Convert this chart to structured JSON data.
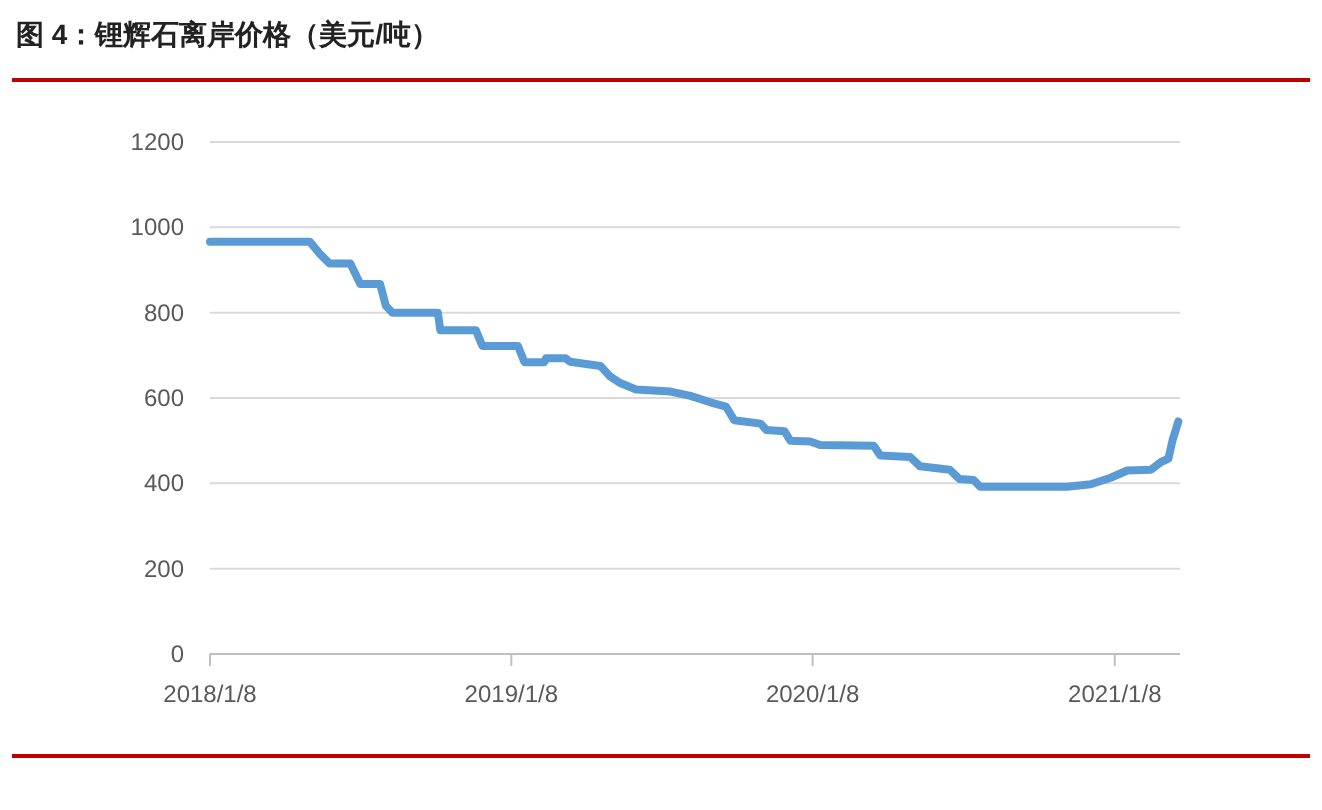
{
  "chart_data": {
    "type": "line",
    "title": "图 4：锂辉石离岸价格（美元/吨）",
    "x": [
      "2018-01-08",
      "2018-05-09",
      "2018-05-21",
      "2018-06-02",
      "2018-06-27",
      "2018-07-09",
      "2018-08-02",
      "2018-08-09",
      "2018-08-17",
      "2018-10-11",
      "2018-10-14",
      "2018-11-26",
      "2018-12-04",
      "2019-01-16",
      "2019-01-24",
      "2019-02-17",
      "2019-02-19",
      "2019-03-15",
      "2019-03-20",
      "2019-04-26",
      "2019-05-08",
      "2019-05-20",
      "2019-06-08",
      "2019-07-20",
      "2019-08-13",
      "2019-09-06",
      "2019-09-25",
      "2019-10-05",
      "2019-11-06",
      "2019-11-13",
      "2019-12-05",
      "2019-12-12",
      "2020-01-05",
      "2020-01-17",
      "2020-03-22",
      "2020-03-30",
      "2020-05-05",
      "2020-05-17",
      "2020-06-22",
      "2020-07-04",
      "2020-07-21",
      "2020-07-29",
      "2020-11-11",
      "2020-12-10",
      "2021-01-03",
      "2021-01-23",
      "2021-02-21",
      "2021-03-05",
      "2021-03-14",
      "2021-03-19",
      "2021-03-26"
    ],
    "series": [
      {
        "color": "#5b9bd5",
        "values": [
          966,
          966,
          938,
          915,
          915,
          867,
          867,
          816,
          800,
          800,
          759,
          759,
          722,
          722,
          684,
          684,
          693,
          693,
          685,
          675,
          650,
          635,
          620,
          615,
          605,
          590,
          580,
          548,
          540,
          525,
          522,
          500,
          498,
          490,
          488,
          465,
          462,
          440,
          432,
          410,
          408,
          392,
          392,
          398,
          413,
          430,
          432,
          450,
          458,
          501,
          545
        ]
      }
    ],
    "xlim": [
      "2018-01-08",
      "2021-03-28"
    ],
    "xticks": [
      {
        "value": "2018-01-08",
        "label": "2018/1/8"
      },
      {
        "value": "2019-01-08",
        "label": "2019/1/8"
      },
      {
        "value": "2020-01-08",
        "label": "2020/1/8"
      },
      {
        "value": "2021-01-08",
        "label": "2021/1/8"
      }
    ],
    "ylim": [
      0,
      1200
    ],
    "yticks": [
      0,
      200,
      400,
      600,
      800,
      1000,
      1200
    ],
    "grid": "y",
    "marker": "none",
    "line_style": "solid"
  }
}
